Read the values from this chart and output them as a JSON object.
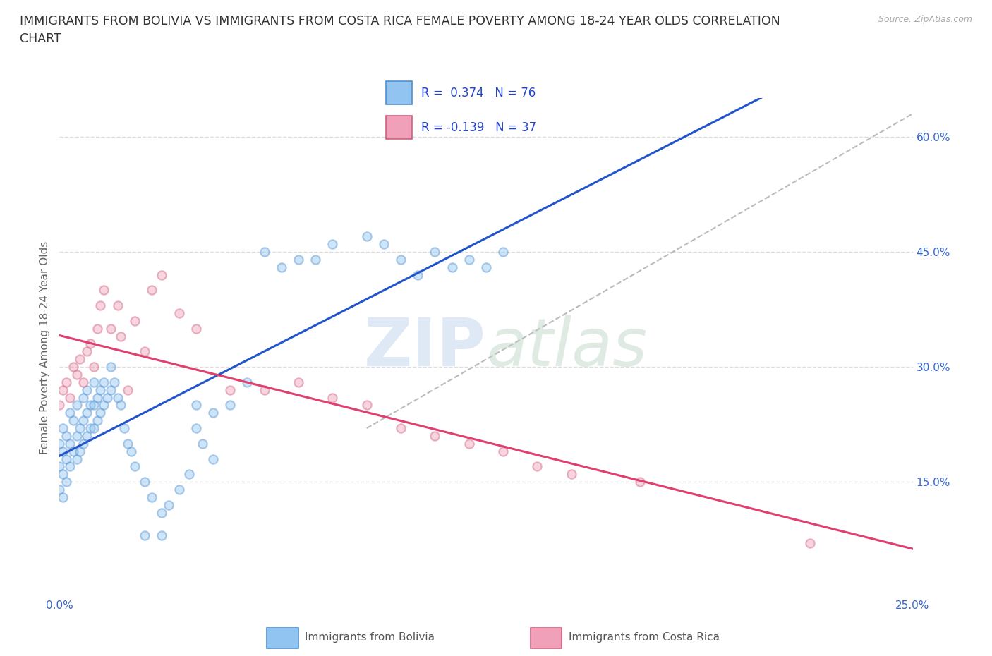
{
  "title_line1": "IMMIGRANTS FROM BOLIVIA VS IMMIGRANTS FROM COSTA RICA FEMALE POVERTY AMONG 18-24 YEAR OLDS CORRELATION",
  "title_line2": "CHART",
  "source_text": "Source: ZipAtlas.com",
  "ylabel": "Female Poverty Among 18-24 Year Olds",
  "xlim": [
    0.0,
    0.25
  ],
  "ylim": [
    0.0,
    0.65
  ],
  "grid_color": "#dddddd",
  "bolivia_color": "#92c4f2",
  "costa_rica_color": "#f0a0b8",
  "bolivia_edge_color": "#5090d0",
  "costa_rica_edge_color": "#d06080",
  "bolivia_line_color": "#2255cc",
  "costa_rica_line_color": "#e04070",
  "diag_line_color": "#bbbbbb",
  "legend_bg": "#f0f5ff",
  "legend_border": "#cccccc",
  "legend_text_color": "#2244cc",
  "tick_color": "#3366cc",
  "ylabel_color": "#666666",
  "R_bolivia": 0.374,
  "N_bolivia": 76,
  "R_costa_rica": -0.139,
  "N_costa_rica": 37,
  "bolivia_x": [
    0.0,
    0.0,
    0.0,
    0.001,
    0.001,
    0.001,
    0.001,
    0.002,
    0.002,
    0.002,
    0.003,
    0.003,
    0.003,
    0.004,
    0.004,
    0.005,
    0.005,
    0.005,
    0.006,
    0.006,
    0.007,
    0.007,
    0.007,
    0.008,
    0.008,
    0.008,
    0.009,
    0.009,
    0.01,
    0.01,
    0.01,
    0.011,
    0.011,
    0.012,
    0.012,
    0.013,
    0.013,
    0.014,
    0.015,
    0.015,
    0.016,
    0.017,
    0.018,
    0.019,
    0.02,
    0.021,
    0.022,
    0.025,
    0.027,
    0.03,
    0.032,
    0.035,
    0.038,
    0.04,
    0.042,
    0.045,
    0.05,
    0.055,
    0.06,
    0.065,
    0.07,
    0.075,
    0.08,
    0.09,
    0.095,
    0.1,
    0.105,
    0.11,
    0.115,
    0.12,
    0.125,
    0.13,
    0.025,
    0.03,
    0.04,
    0.045
  ],
  "bolivia_y": [
    0.2,
    0.17,
    0.14,
    0.22,
    0.19,
    0.16,
    0.13,
    0.21,
    0.18,
    0.15,
    0.24,
    0.2,
    0.17,
    0.23,
    0.19,
    0.25,
    0.21,
    0.18,
    0.22,
    0.19,
    0.26,
    0.23,
    0.2,
    0.27,
    0.24,
    0.21,
    0.25,
    0.22,
    0.28,
    0.25,
    0.22,
    0.26,
    0.23,
    0.27,
    0.24,
    0.28,
    0.25,
    0.26,
    0.3,
    0.27,
    0.28,
    0.26,
    0.25,
    0.22,
    0.2,
    0.19,
    0.17,
    0.15,
    0.13,
    0.11,
    0.12,
    0.14,
    0.16,
    0.22,
    0.2,
    0.18,
    0.25,
    0.28,
    0.45,
    0.43,
    0.44,
    0.44,
    0.46,
    0.47,
    0.46,
    0.44,
    0.42,
    0.45,
    0.43,
    0.44,
    0.43,
    0.45,
    0.08,
    0.08,
    0.25,
    0.24
  ],
  "costa_rica_x": [
    0.0,
    0.001,
    0.002,
    0.003,
    0.004,
    0.005,
    0.006,
    0.007,
    0.008,
    0.009,
    0.01,
    0.011,
    0.012,
    0.013,
    0.015,
    0.017,
    0.018,
    0.02,
    0.022,
    0.025,
    0.027,
    0.03,
    0.035,
    0.04,
    0.05,
    0.06,
    0.07,
    0.08,
    0.09,
    0.1,
    0.11,
    0.12,
    0.13,
    0.14,
    0.15,
    0.17,
    0.22
  ],
  "costa_rica_y": [
    0.25,
    0.27,
    0.28,
    0.26,
    0.3,
    0.29,
    0.31,
    0.28,
    0.32,
    0.33,
    0.3,
    0.35,
    0.38,
    0.4,
    0.35,
    0.38,
    0.34,
    0.27,
    0.36,
    0.32,
    0.4,
    0.42,
    0.37,
    0.35,
    0.27,
    0.27,
    0.28,
    0.26,
    0.25,
    0.22,
    0.21,
    0.2,
    0.19,
    0.17,
    0.16,
    0.15,
    0.07
  ],
  "title_fontsize": 12.5,
  "ylabel_fontsize": 11,
  "tick_fontsize": 11,
  "marker_size": 80,
  "marker_alpha": 0.45,
  "marker_linewidth": 1.5
}
